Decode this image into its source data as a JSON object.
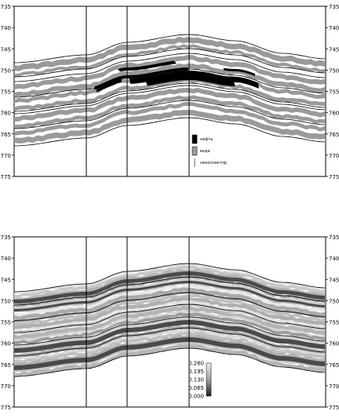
{
  "panels": [
    {
      "id": "facies",
      "depth_range": [
        735,
        775
      ],
      "tick_labels": [
        "735",
        "740",
        "745",
        "750",
        "755",
        "760",
        "765",
        "770",
        "775"
      ],
      "legend": [
        {
          "label": "нефть",
          "color": "#000000"
        },
        {
          "label": "вода",
          "color": "#9a9a9a"
        },
        {
          "label": "неколлектор",
          "color": "#ffffff"
        }
      ]
    },
    {
      "id": "property",
      "depth_range": [
        735,
        775
      ],
      "tick_labels": [
        "735",
        "740",
        "745",
        "750",
        "755",
        "760",
        "765",
        "770",
        "775"
      ],
      "colorbar": {
        "labels": [
          "0.260",
          "0.195",
          "0.130",
          "0.065",
          "0.000"
        ],
        "min": 0.0,
        "max": 0.26
      }
    }
  ]
}
